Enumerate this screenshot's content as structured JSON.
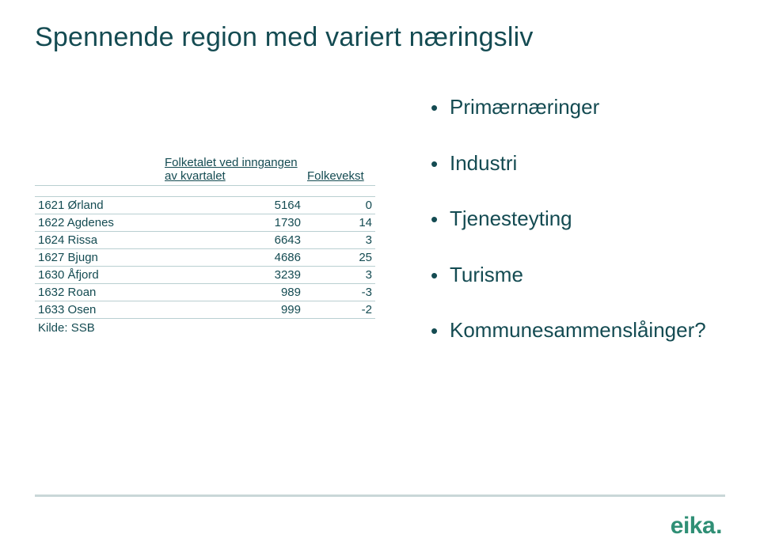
{
  "title": "Spennende region med variert næringsliv",
  "colors": {
    "text": "#144b52",
    "rule": "#b9cfd1",
    "footer_rule": "#c9d7d8",
    "logo": "#2f8f75",
    "background": "#ffffff"
  },
  "table": {
    "headers": {
      "col_a": "",
      "col_b": "Folketalet ved inngangen av kvartalet",
      "col_c": "Folkevekst"
    },
    "rows": [
      {
        "label": "1621 Ørland",
        "pop": "5164",
        "growth": "0"
      },
      {
        "label": "1622 Agdenes",
        "pop": "1730",
        "growth": "14"
      },
      {
        "label": "1624 Rissa",
        "pop": "6643",
        "growth": "3"
      },
      {
        "label": "1627 Bjugn",
        "pop": "4686",
        "growth": "25"
      },
      {
        "label": "1630 Åfjord",
        "pop": "3239",
        "growth": "3"
      },
      {
        "label": "1632 Roan",
        "pop": "989",
        "growth": "-3"
      },
      {
        "label": "1633 Osen",
        "pop": "999",
        "growth": "-2"
      }
    ],
    "source": "Kilde: SSB"
  },
  "bullets": [
    "Primærnæringer",
    "Industri",
    "Tjenesteyting",
    "Turisme",
    "Kommunesammenslåinger?"
  ],
  "logo_text": "eika",
  "fontsize": {
    "title": 34,
    "body": 15,
    "bullets": 26,
    "logo": 30
  }
}
